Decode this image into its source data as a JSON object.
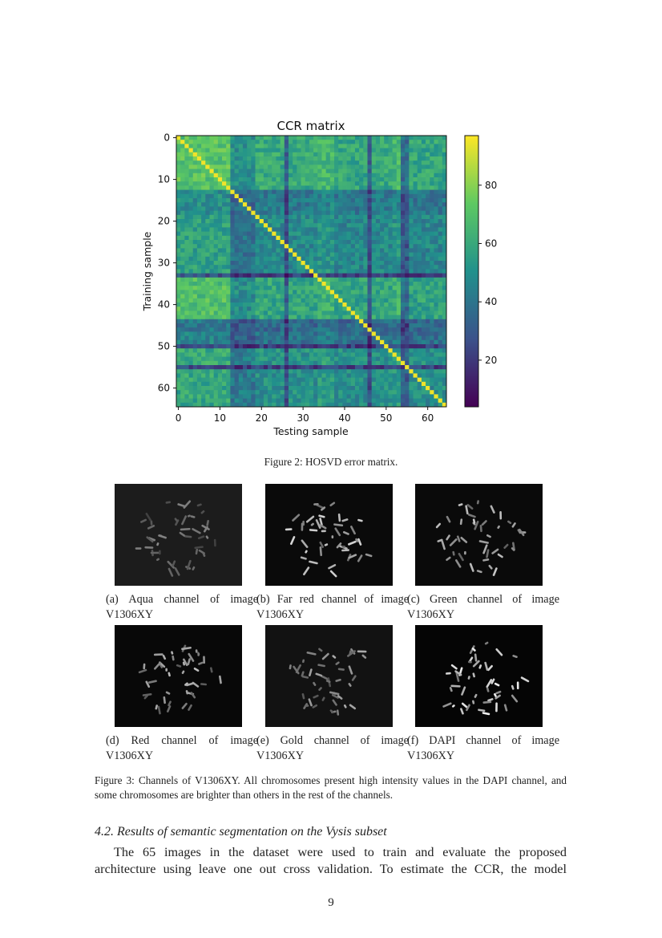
{
  "figure2": {
    "caption": "Figure 2: HOSVD error matrix.",
    "chart_data": {
      "type": "heatmap",
      "title": "CCR matrix",
      "xlabel": "Testing sample",
      "ylabel": "Training sample",
      "xticks": [
        "0",
        "10",
        "20",
        "30",
        "40",
        "50",
        "60"
      ],
      "yticks": [
        "0",
        "10",
        "20",
        "30",
        "40",
        "50",
        "60"
      ],
      "size": 65,
      "colormap": "viridis",
      "colorbar": {
        "range": [
          4,
          97
        ],
        "ticks": [
          "20",
          "40",
          "60",
          "80"
        ]
      },
      "diagonal_value": 95,
      "row_level_estimates": [
        72,
        72,
        72,
        72,
        72,
        72,
        72,
        72,
        72,
        72,
        72,
        72,
        72,
        35,
        35,
        35,
        35,
        35,
        35,
        45,
        45,
        45,
        45,
        45,
        45,
        45,
        45,
        45,
        45,
        45,
        45,
        45,
        45,
        10,
        68,
        68,
        68,
        68,
        68,
        68,
        68,
        68,
        68,
        68,
        25,
        25,
        25,
        30,
        30,
        30,
        10,
        52,
        52,
        52,
        52,
        10,
        50,
        50,
        50,
        50,
        50,
        50,
        50,
        50,
        50
      ],
      "column_level_estimates": [
        70,
        70,
        70,
        70,
        70,
        70,
        70,
        70,
        70,
        70,
        70,
        70,
        70,
        35,
        35,
        35,
        35,
        35,
        35,
        50,
        50,
        50,
        50,
        50,
        50,
        50,
        15,
        50,
        50,
        50,
        50,
        50,
        50,
        50,
        60,
        60,
        60,
        60,
        48,
        48,
        48,
        48,
        48,
        48,
        48,
        48,
        15,
        50,
        50,
        50,
        50,
        50,
        60,
        60,
        20,
        20,
        48,
        48,
        48,
        48,
        48,
        48,
        48,
        48,
        48
      ]
    }
  },
  "figure3": {
    "subfigures": [
      {
        "label": "(a) Aqua channel of image V1306XY",
        "brightness": 0.55,
        "background": "#1c1c1c"
      },
      {
        "label": "(b) Far red channel of image V1306XY",
        "brightness": 0.85,
        "background": "#0a0a0a"
      },
      {
        "label": "(c) Green channel of image V1306XY",
        "brightness": 0.8,
        "background": "#0a0a0a"
      },
      {
        "label": "(d) Red channel of image V1306XY",
        "brightness": 0.75,
        "background": "#080808"
      },
      {
        "label": "(e) Gold channel of image V1306XY",
        "brightness": 0.7,
        "background": "#121212"
      },
      {
        "label": "(f) DAPI channel of image V1306XY",
        "brightness": 0.95,
        "background": "#050505"
      }
    ],
    "caption": "Figure 3: Channels of V1306XY. All chromosomes present high intensity values in the DAPI channel, and some chromosomes are brighter than others in the rest of the channels."
  },
  "section": {
    "heading": "4.2. Results of semantic segmentation on the Vysis subset",
    "paragraph_line1": "The 65 images in the dataset were used to train and evaluate the proposed",
    "paragraph_line2": "architecture using leave one out cross validation. To estimate the CCR, the model"
  },
  "page_number": "9"
}
